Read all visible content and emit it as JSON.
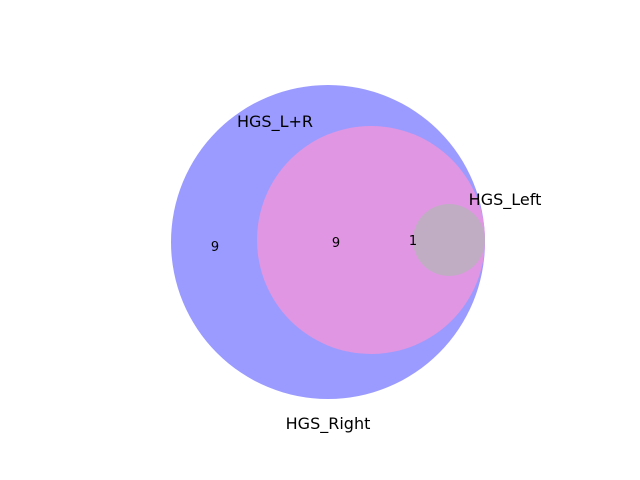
{
  "diagram": {
    "type": "venn",
    "sets": [
      {
        "name": "HGS_L+R",
        "color": "#e096e2"
      },
      {
        "name": "HGS_Left",
        "color": "#c0adc4"
      },
      {
        "name": "HGS_Right",
        "color": "#9b9bff"
      }
    ],
    "regions": [
      {
        "sets": [
          "HGS_Right"
        ],
        "value": "9"
      },
      {
        "sets": [
          "HGS_L+R",
          "HGS_Right"
        ],
        "value": "9"
      },
      {
        "sets": [
          "HGS_L+R",
          "HGS_Left",
          "HGS_Right"
        ],
        "value": "1"
      }
    ]
  }
}
